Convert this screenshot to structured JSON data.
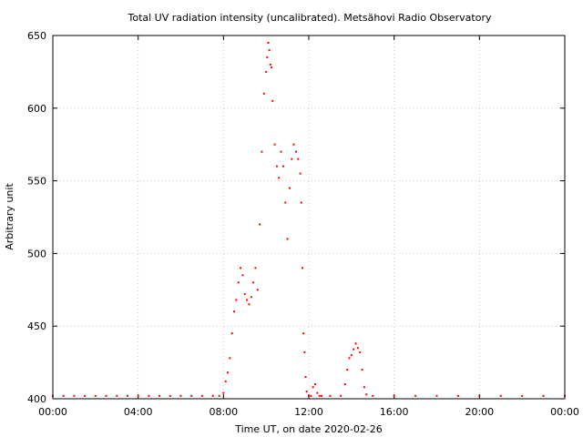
{
  "chart_data": {
    "type": "scatter",
    "title": "Total UV radiation intensity (uncalibrated). Metsähovi Radio Observatory",
    "xlabel": "Time UT, on date 2020-02-26",
    "ylabel": "Arbitrary unit",
    "xlim": [
      0,
      24
    ],
    "ylim": [
      400,
      650
    ],
    "x_ticks": [
      0,
      4,
      8,
      12,
      16,
      20,
      24
    ],
    "x_tick_labels": [
      "00:00",
      "04:00",
      "08:00",
      "12:00",
      "16:00",
      "20:00",
      "00:00"
    ],
    "y_ticks": [
      400,
      450,
      500,
      550,
      600,
      650
    ],
    "y_tick_labels": [
      "400",
      "450",
      "500",
      "550",
      "600",
      "650"
    ],
    "grid": true,
    "legend": "none",
    "marker_color": "#ff0000",
    "series": [
      {
        "x_hours": [
          0.0,
          0.5,
          1.0,
          1.5,
          2.0,
          2.5,
          3.0,
          3.5,
          4.0,
          4.5,
          5.0,
          5.5,
          6.0,
          6.5,
          7.0,
          7.5,
          7.8,
          8.0,
          8.1,
          8.2,
          8.3,
          8.4,
          8.5,
          8.6,
          8.7,
          8.8,
          8.9,
          9.0,
          9.1,
          9.2,
          9.3,
          9.4,
          9.5,
          9.6,
          9.7,
          9.8,
          9.9,
          10.0,
          10.05,
          10.1,
          10.15,
          10.2,
          10.25,
          10.3,
          10.4,
          10.5,
          10.6,
          10.7,
          10.8,
          10.9,
          11.0,
          11.1,
          11.2,
          11.3,
          11.4,
          11.5,
          11.6,
          11.65,
          11.7,
          11.75,
          11.8,
          11.85,
          11.9,
          12.0,
          12.1,
          12.2,
          12.3,
          12.4,
          12.5,
          12.6,
          13.0,
          13.5,
          13.7,
          13.8,
          13.9,
          14.0,
          14.1,
          14.2,
          14.3,
          14.4,
          14.5,
          14.6,
          14.7,
          15.0,
          16.0,
          17.0,
          18.0,
          19.0,
          20.0,
          21.0,
          22.0,
          23.0,
          24.0
        ],
        "y": [
          402,
          402,
          402,
          402,
          402,
          402,
          402,
          402,
          402,
          402,
          402,
          402,
          402,
          402,
          402,
          402,
          402,
          404,
          412,
          418,
          428,
          445,
          460,
          468,
          480,
          490,
          485,
          472,
          468,
          465,
          470,
          480,
          490,
          475,
          520,
          570,
          610,
          625,
          635,
          645,
          640,
          630,
          628,
          605,
          575,
          560,
          552,
          570,
          560,
          535,
          510,
          545,
          565,
          575,
          570,
          565,
          555,
          535,
          490,
          445,
          432,
          415,
          405,
          402,
          402,
          408,
          410,
          404,
          402,
          402,
          402,
          402,
          410,
          420,
          428,
          430,
          434,
          438,
          435,
          432,
          420,
          408,
          403,
          402,
          402,
          402,
          402,
          402,
          402,
          402,
          402,
          402,
          402
        ]
      }
    ]
  }
}
